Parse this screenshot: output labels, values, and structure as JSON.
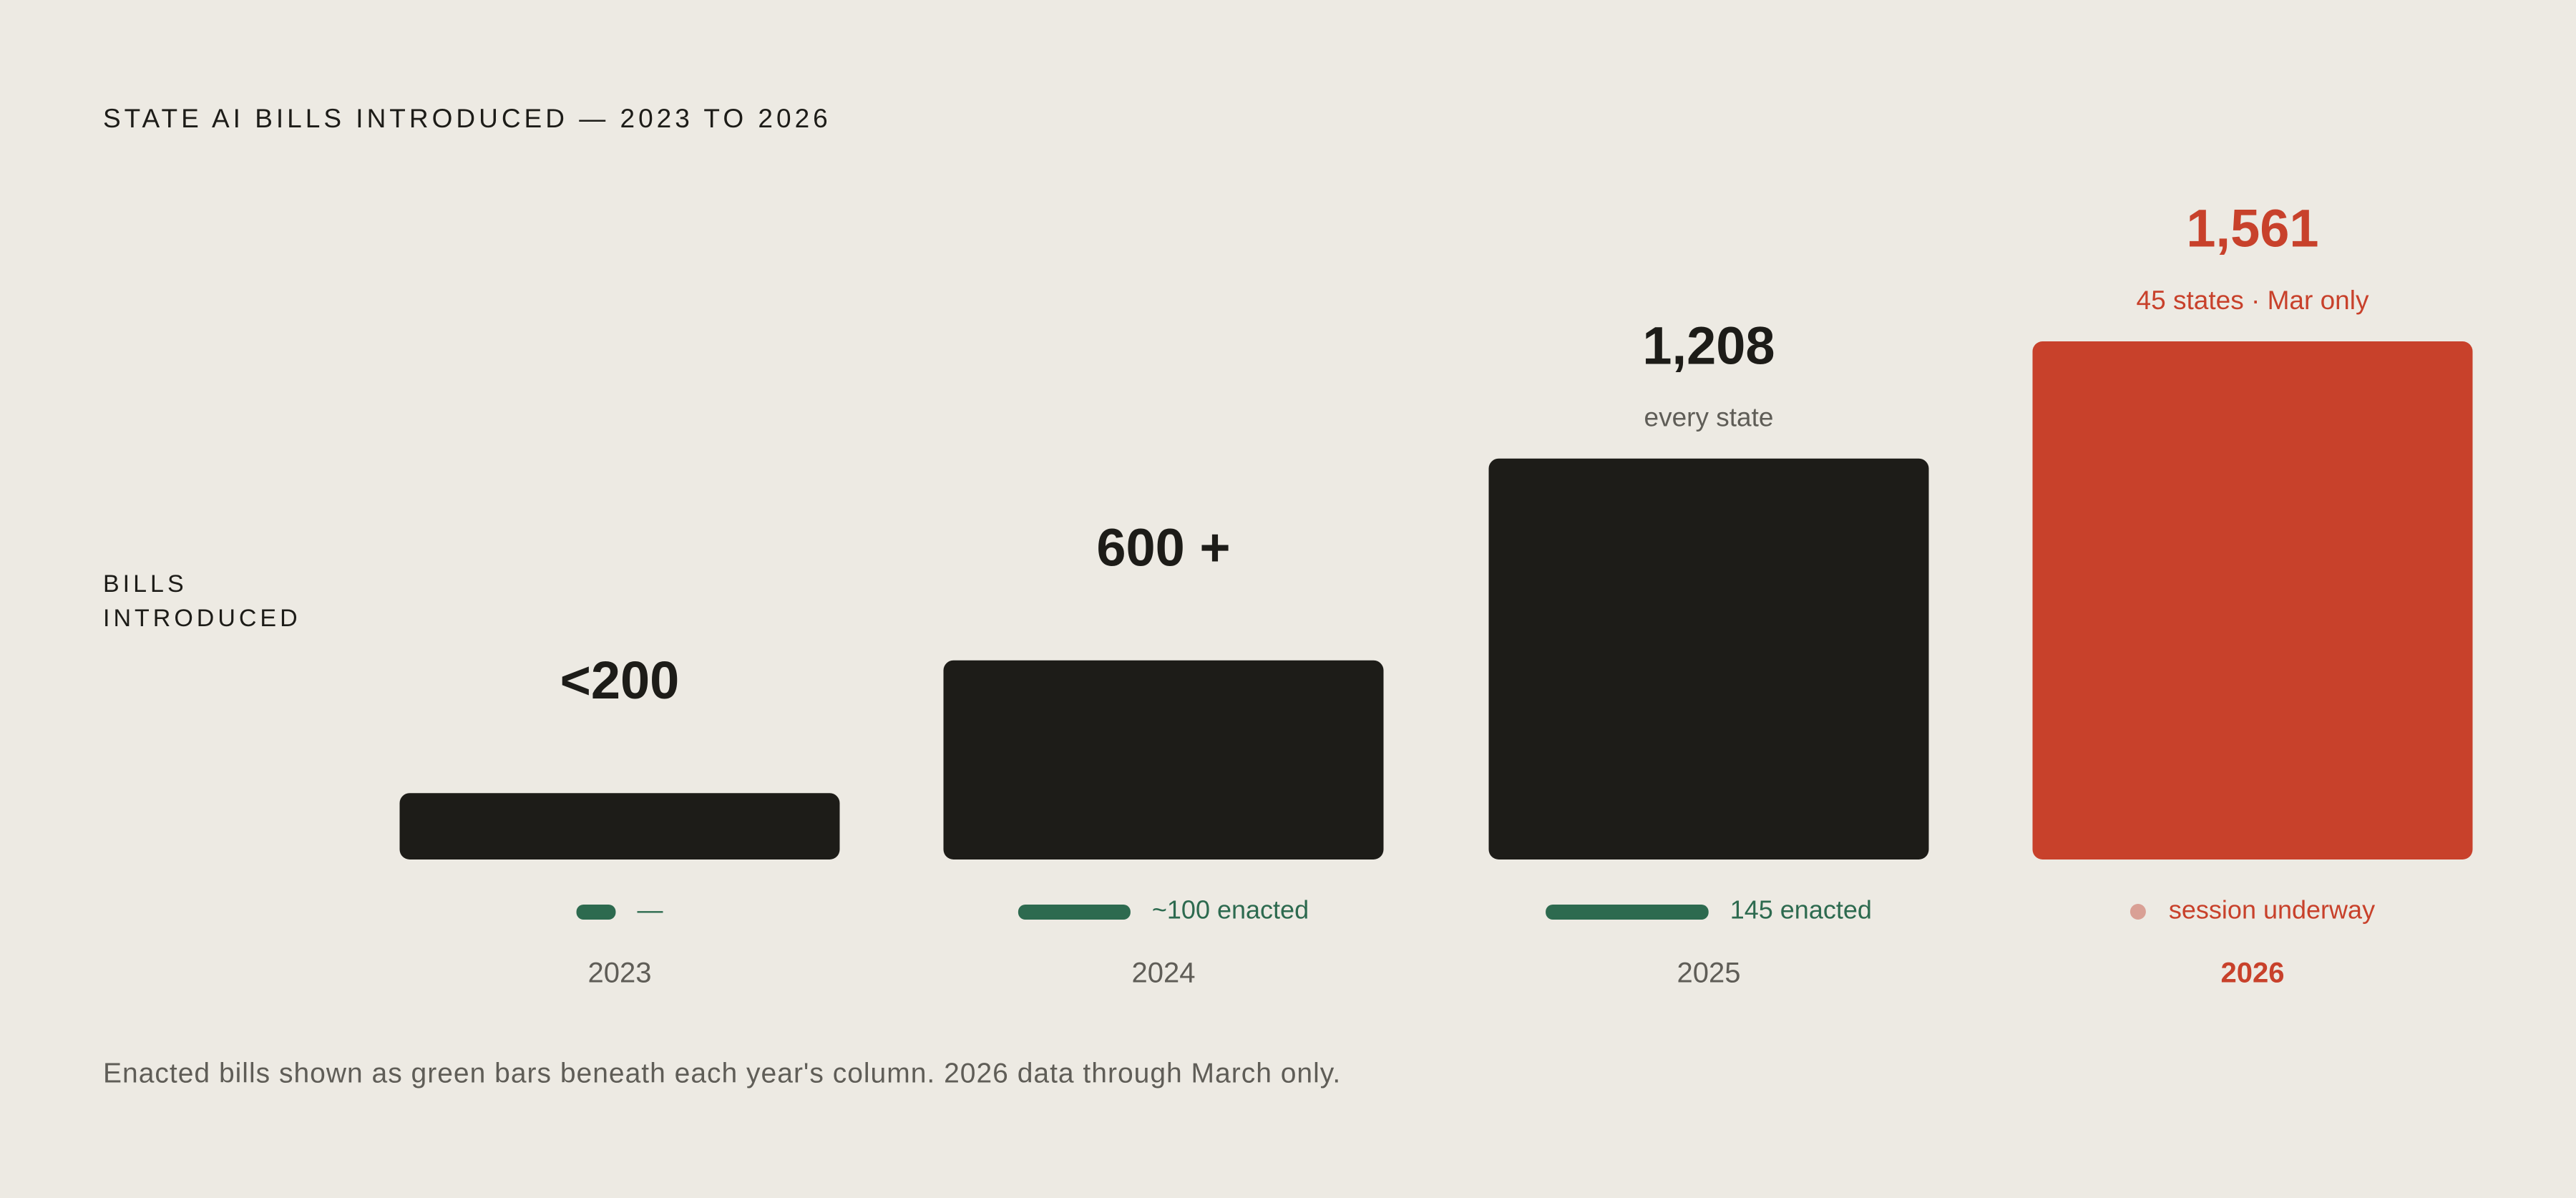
{
  "chart_data": {
    "type": "bar",
    "title": "STATE AI BILLS INTRODUCED — 2023 TO 2026",
    "ylabel": "BILLS INTRODUCED",
    "categories": [
      "2023",
      "2024",
      "2025",
      "2026"
    ],
    "values": [
      200,
      600,
      1208,
      1561
    ],
    "value_labels": [
      "<200",
      "600 +",
      "1,208",
      "1,561"
    ],
    "notes": [
      null,
      null,
      "every state",
      "45 states · Mar only"
    ],
    "bar_colors": [
      "#1d1c18",
      "#1d1c18",
      "#1d1c18",
      "#c8412b"
    ],
    "enacted": {
      "color": "#2d6a4f",
      "values": [
        35,
        100,
        145,
        null
      ],
      "labels": [
        "—",
        "~100 enacted",
        "145 enacted",
        "session underway"
      ],
      "pending_color": "#d9a095"
    },
    "footnote": "Enacted bills shown as green bars beneath each year's column. 2026 data through March only."
  }
}
